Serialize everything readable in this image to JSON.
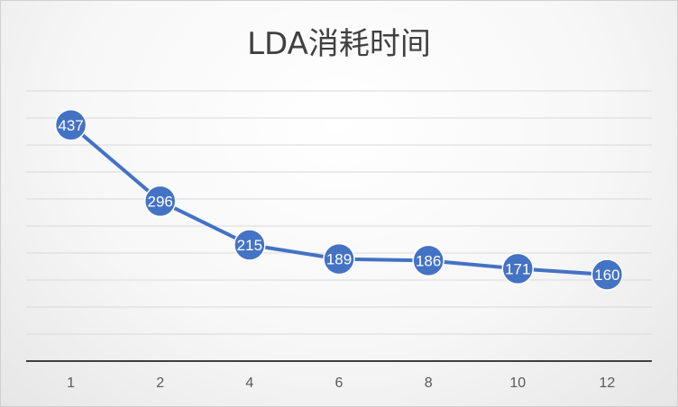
{
  "chart_data": {
    "type": "line",
    "title": "LDA消耗时间",
    "categories": [
      "1",
      "2",
      "4",
      "6",
      "8",
      "10",
      "12"
    ],
    "series": [
      {
        "values": [
          437,
          296,
          215,
          189,
          186,
          171,
          160
        ]
      }
    ],
    "ylim": [
      0,
      500
    ],
    "ystep": 50,
    "grid": true,
    "y_tick_labels_shown": false,
    "data_labels": true,
    "line_color": "#4472C4",
    "marker_color": "#4472C4"
  }
}
